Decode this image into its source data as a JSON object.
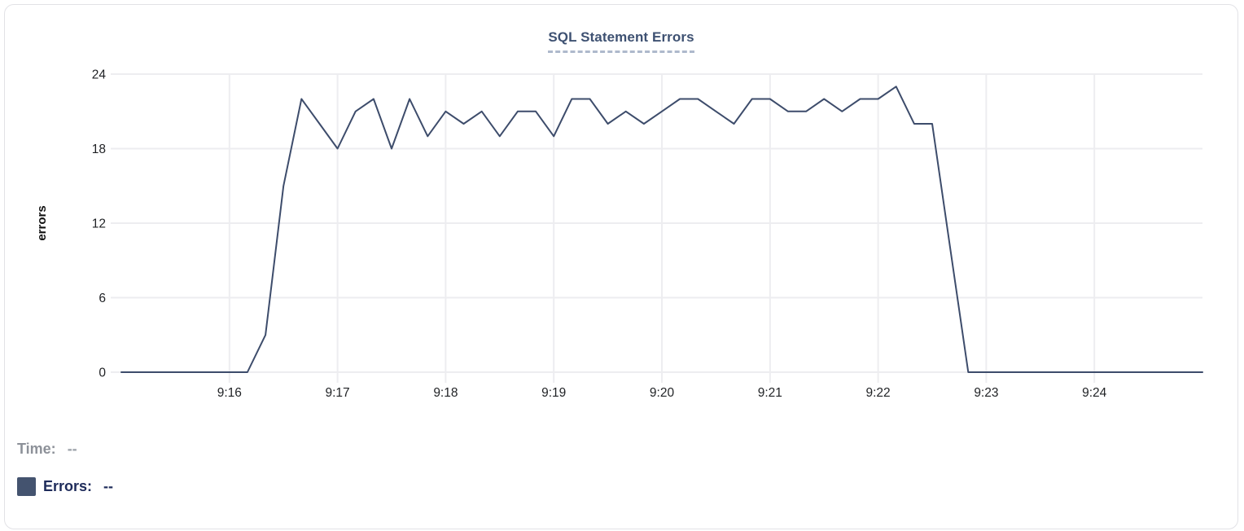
{
  "legend": {
    "time_label": "Time:",
    "time_value": "--",
    "errors_label": "Errors:",
    "errors_value": "--"
  },
  "chart_data": {
    "type": "line",
    "title": "SQL Statement Errors",
    "ylabel": "errors",
    "x_start": "9:15:00",
    "x_end": "9:25:00",
    "interval_seconds": 10,
    "x_tick_labels": [
      "9:16",
      "9:17",
      "9:18",
      "9:19",
      "9:20",
      "9:21",
      "9:22",
      "9:23",
      "9:24"
    ],
    "yticks": [
      0,
      6,
      12,
      18,
      24
    ],
    "ylim": [
      0,
      24
    ],
    "grid": true,
    "legend_position": "bottom-left",
    "series": [
      {
        "name": "Errors",
        "values": [
          0,
          0,
          0,
          0,
          0,
          0,
          0,
          0,
          3,
          15,
          22,
          20,
          18,
          21,
          22,
          18,
          22,
          19,
          21,
          20,
          21,
          19,
          21,
          21,
          19,
          22,
          22,
          20,
          21,
          20,
          21,
          22,
          22,
          21,
          20,
          22,
          22,
          21,
          21,
          22,
          21,
          22,
          22,
          23,
          20,
          20,
          10,
          0,
          0,
          0,
          0,
          0,
          0,
          0,
          0,
          0,
          0,
          0,
          0,
          0,
          0
        ]
      }
    ],
    "colors": {
      "line": "#3d4c6b",
      "grid": "#ededf0",
      "tick_text": "#1f2124",
      "axis_title_text": "#111111",
      "title": "#3e5172",
      "title_underline": "#aeb9cc",
      "legend_time": "#8d9199",
      "legend_time_value": "#9aa0a8",
      "legend_errors": "#1e2b5a",
      "swatch": "#44536f"
    }
  }
}
